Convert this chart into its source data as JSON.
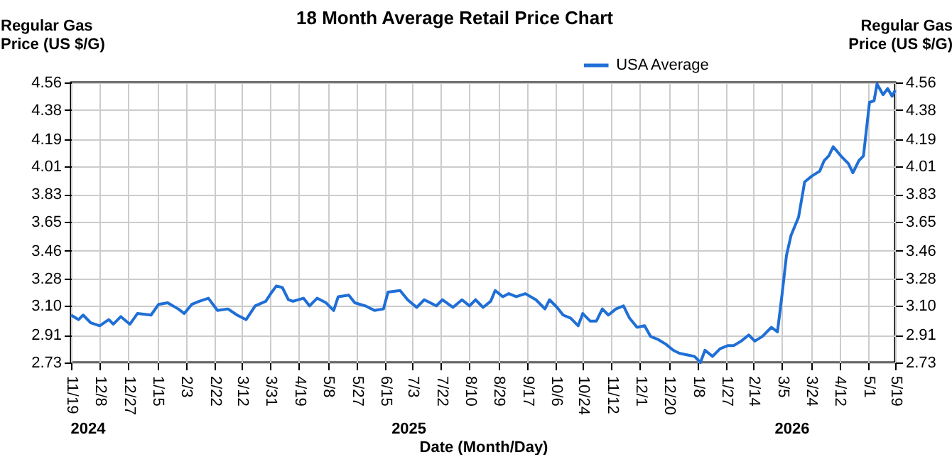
{
  "chart_data": {
    "type": "line",
    "title": "18 Month Average Retail Price Chart",
    "xlabel": "Date (Month/Day)",
    "ylabel": "Regular Gas\nPrice (US $/G)",
    "y2label": "Regular Gas\nPrice (US $/G)",
    "x": [
      "2024-11-19",
      "2024-11-24",
      "2024-11-27",
      "2024-12-02",
      "2024-12-08",
      "2024-12-14",
      "2024-12-17",
      "2024-12-22",
      "2024-12-28",
      "2025-01-02",
      "2025-01-11",
      "2025-01-16",
      "2025-01-22",
      "2025-01-29",
      "2025-02-02",
      "2025-02-07",
      "2025-02-12",
      "2025-02-18",
      "2025-02-24",
      "2025-03-03",
      "2025-03-09",
      "2025-03-15",
      "2025-03-21",
      "2025-03-28",
      "2025-04-01",
      "2025-04-04",
      "2025-04-08",
      "2025-04-12",
      "2025-04-15",
      "2025-04-22",
      "2025-04-26",
      "2025-05-01",
      "2025-05-07",
      "2025-05-12",
      "2025-05-15",
      "2025-05-22",
      "2025-05-26",
      "2025-06-02",
      "2025-06-08",
      "2025-06-14",
      "2025-06-17",
      "2025-06-25",
      "2025-06-30",
      "2025-07-06",
      "2025-07-11",
      "2025-07-19",
      "2025-07-23",
      "2025-07-30",
      "2025-08-05",
      "2025-08-10",
      "2025-08-14",
      "2025-08-19",
      "2025-08-24",
      "2025-08-27",
      "2025-09-01",
      "2025-09-05",
      "2025-09-10",
      "2025-09-16",
      "2025-09-23",
      "2025-09-29",
      "2025-10-02",
      "2025-10-07",
      "2025-10-11",
      "2025-10-16",
      "2025-10-21",
      "2025-10-24",
      "2025-10-29",
      "2025-11-02",
      "2025-11-06",
      "2025-11-10",
      "2025-11-15",
      "2025-11-20",
      "2025-11-24",
      "2025-11-29",
      "2025-12-04",
      "2025-12-08",
      "2025-12-13",
      "2025-12-18",
      "2025-12-23",
      "2025-12-27",
      "2026-01-01",
      "2026-01-06",
      "2026-01-10",
      "2026-01-13",
      "2026-01-18",
      "2026-01-23",
      "2026-01-28",
      "2026-02-01",
      "2026-02-06",
      "2026-02-11",
      "2026-02-15",
      "2026-02-20",
      "2026-02-26",
      "2026-03-02",
      "2026-03-05",
      "2026-03-08",
      "2026-03-11",
      "2026-03-16",
      "2026-03-19",
      "2026-03-20",
      "2026-03-25",
      "2026-03-30",
      "2026-04-02",
      "2026-04-05",
      "2026-04-08",
      "2026-04-13",
      "2026-04-18",
      "2026-04-21",
      "2026-04-25",
      "2026-04-28",
      "2026-05-02",
      "2026-05-05",
      "2026-05-07",
      "2026-05-11",
      "2026-05-14",
      "2026-05-17",
      "2026-05-19"
    ],
    "series": [
      {
        "name": "USA Average",
        "color": "#1f6fd6",
        "values": [
          3.04,
          3.01,
          3.04,
          2.99,
          2.97,
          3.01,
          2.98,
          3.03,
          2.98,
          3.05,
          3.04,
          3.11,
          3.12,
          3.08,
          3.05,
          3.11,
          3.13,
          3.15,
          3.07,
          3.08,
          3.04,
          3.01,
          3.1,
          3.13,
          3.19,
          3.23,
          3.22,
          3.14,
          3.13,
          3.15,
          3.1,
          3.15,
          3.12,
          3.07,
          3.16,
          3.17,
          3.12,
          3.1,
          3.07,
          3.08,
          3.19,
          3.2,
          3.14,
          3.09,
          3.14,
          3.1,
          3.14,
          3.09,
          3.14,
          3.1,
          3.14,
          3.09,
          3.13,
          3.2,
          3.16,
          3.18,
          3.16,
          3.18,
          3.14,
          3.08,
          3.14,
          3.09,
          3.04,
          3.02,
          2.97,
          3.05,
          3.0,
          3.0,
          3.08,
          3.04,
          3.08,
          3.1,
          3.02,
          2.96,
          2.97,
          2.9,
          2.88,
          2.85,
          2.81,
          2.79,
          2.78,
          2.77,
          2.73,
          2.81,
          2.77,
          2.82,
          2.84,
          2.84,
          2.87,
          2.91,
          2.87,
          2.9,
          2.96,
          2.93,
          3.17,
          3.43,
          3.56,
          3.68,
          3.85,
          3.91,
          3.95,
          3.98,
          4.05,
          4.08,
          4.14,
          4.08,
          4.03,
          3.97,
          4.05,
          4.08,
          4.43,
          4.44,
          4.55,
          4.48,
          4.52,
          4.47,
          4.51
        ]
      }
    ],
    "xlim": [
      "2024-11-19",
      "2026-05-19"
    ],
    "xticks": [
      {
        "value": "2024-11-19",
        "label": "11/19"
      },
      {
        "value": "2024-12-08",
        "label": "12/8"
      },
      {
        "value": "2024-12-27",
        "label": "12/27"
      },
      {
        "value": "2025-01-15",
        "label": "1/15"
      },
      {
        "value": "2025-02-03",
        "label": "2/3"
      },
      {
        "value": "2025-02-22",
        "label": "2/22"
      },
      {
        "value": "2025-03-12",
        "label": "3/12"
      },
      {
        "value": "2025-03-31",
        "label": "3/31"
      },
      {
        "value": "2025-04-19",
        "label": "4/19"
      },
      {
        "value": "2025-05-08",
        "label": "5/8"
      },
      {
        "value": "2025-05-27",
        "label": "5/27"
      },
      {
        "value": "2025-06-15",
        "label": "6/15"
      },
      {
        "value": "2025-07-03",
        "label": "7/3"
      },
      {
        "value": "2025-07-22",
        "label": "7/22"
      },
      {
        "value": "2025-08-10",
        "label": "8/10"
      },
      {
        "value": "2025-08-29",
        "label": "8/29"
      },
      {
        "value": "2025-09-17",
        "label": "9/17"
      },
      {
        "value": "2025-10-06",
        "label": "10/6"
      },
      {
        "value": "2025-10-24",
        "label": "10/24"
      },
      {
        "value": "2025-11-12",
        "label": "11/12"
      },
      {
        "value": "2025-12-01",
        "label": "12/1"
      },
      {
        "value": "2025-12-20",
        "label": "12/20"
      },
      {
        "value": "2026-01-08",
        "label": "1/8"
      },
      {
        "value": "2026-01-27",
        "label": "1/27"
      },
      {
        "value": "2026-02-14",
        "label": "2/14"
      },
      {
        "value": "2026-03-05",
        "label": "3/5"
      },
      {
        "value": "2026-03-24",
        "label": "3/24"
      },
      {
        "value": "2026-04-12",
        "label": "4/12"
      },
      {
        "value": "2026-05-01",
        "label": "5/1"
      },
      {
        "value": "2026-05-19",
        "label": "5/19"
      }
    ],
    "ylim": [
      2.73,
      4.56
    ],
    "yticks": [
      {
        "value": 2.73,
        "label": "2.73"
      },
      {
        "value": 2.91,
        "label": "2.91"
      },
      {
        "value": 3.1,
        "label": "3.10"
      },
      {
        "value": 3.28,
        "label": "3.28"
      },
      {
        "value": 3.46,
        "label": "3.46"
      },
      {
        "value": 3.65,
        "label": "3.65"
      },
      {
        "value": 3.83,
        "label": "3.83"
      },
      {
        "value": 4.01,
        "label": "4.01"
      },
      {
        "value": 4.19,
        "label": "4.19"
      },
      {
        "value": 4.38,
        "label": "4.38"
      },
      {
        "value": 4.56,
        "label": "4.56"
      }
    ],
    "y2lim": [
      2.73,
      4.56
    ],
    "y2ticks": [
      {
        "value": 2.73,
        "label": "2.73"
      },
      {
        "value": 2.91,
        "label": "2.91"
      },
      {
        "value": 3.1,
        "label": "3.10"
      },
      {
        "value": 3.28,
        "label": "3.28"
      },
      {
        "value": 3.46,
        "label": "3.46"
      },
      {
        "value": 3.65,
        "label": "3.65"
      },
      {
        "value": 3.83,
        "label": "3.83"
      },
      {
        "value": 4.01,
        "label": "4.01"
      },
      {
        "value": 4.19,
        "label": "4.19"
      },
      {
        "value": 4.38,
        "label": "4.38"
      },
      {
        "value": 4.56,
        "label": "4.56"
      }
    ],
    "annotations": [
      "2024",
      "2025",
      "2026"
    ],
    "grid": true,
    "legend": "top",
    "marker": "none",
    "line_style": "solid"
  }
}
